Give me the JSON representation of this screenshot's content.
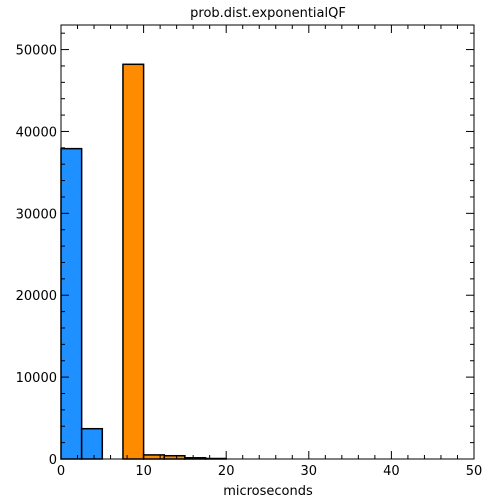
{
  "chart_data": {
    "type": "bar",
    "title": "prob.dist.exponentialQF",
    "xlabel": "microseconds",
    "ylabel": "",
    "xlim": [
      0,
      50
    ],
    "ylim": [
      0,
      53000
    ],
    "xticks": [
      0,
      10,
      20,
      30,
      40,
      50
    ],
    "yticks": [
      0,
      10000,
      20000,
      30000,
      40000,
      50000
    ],
    "grid": false,
    "legend": "none",
    "series": [
      {
        "color": "#1e90ff",
        "bins": [
          {
            "x0": 0,
            "x1": 2.5,
            "value": 37900
          },
          {
            "x0": 2.5,
            "x1": 5,
            "value": 3700
          }
        ]
      },
      {
        "color": "#ff8c00",
        "bins": [
          {
            "x0": 7.5,
            "x1": 10,
            "value": 48200
          },
          {
            "x0": 10,
            "x1": 12.5,
            "value": 500
          },
          {
            "x0": 12.5,
            "x1": 15,
            "value": 400
          },
          {
            "x0": 15,
            "x1": 17.5,
            "value": 150
          },
          {
            "x0": 17.5,
            "x1": 20,
            "value": 60
          }
        ]
      }
    ]
  }
}
